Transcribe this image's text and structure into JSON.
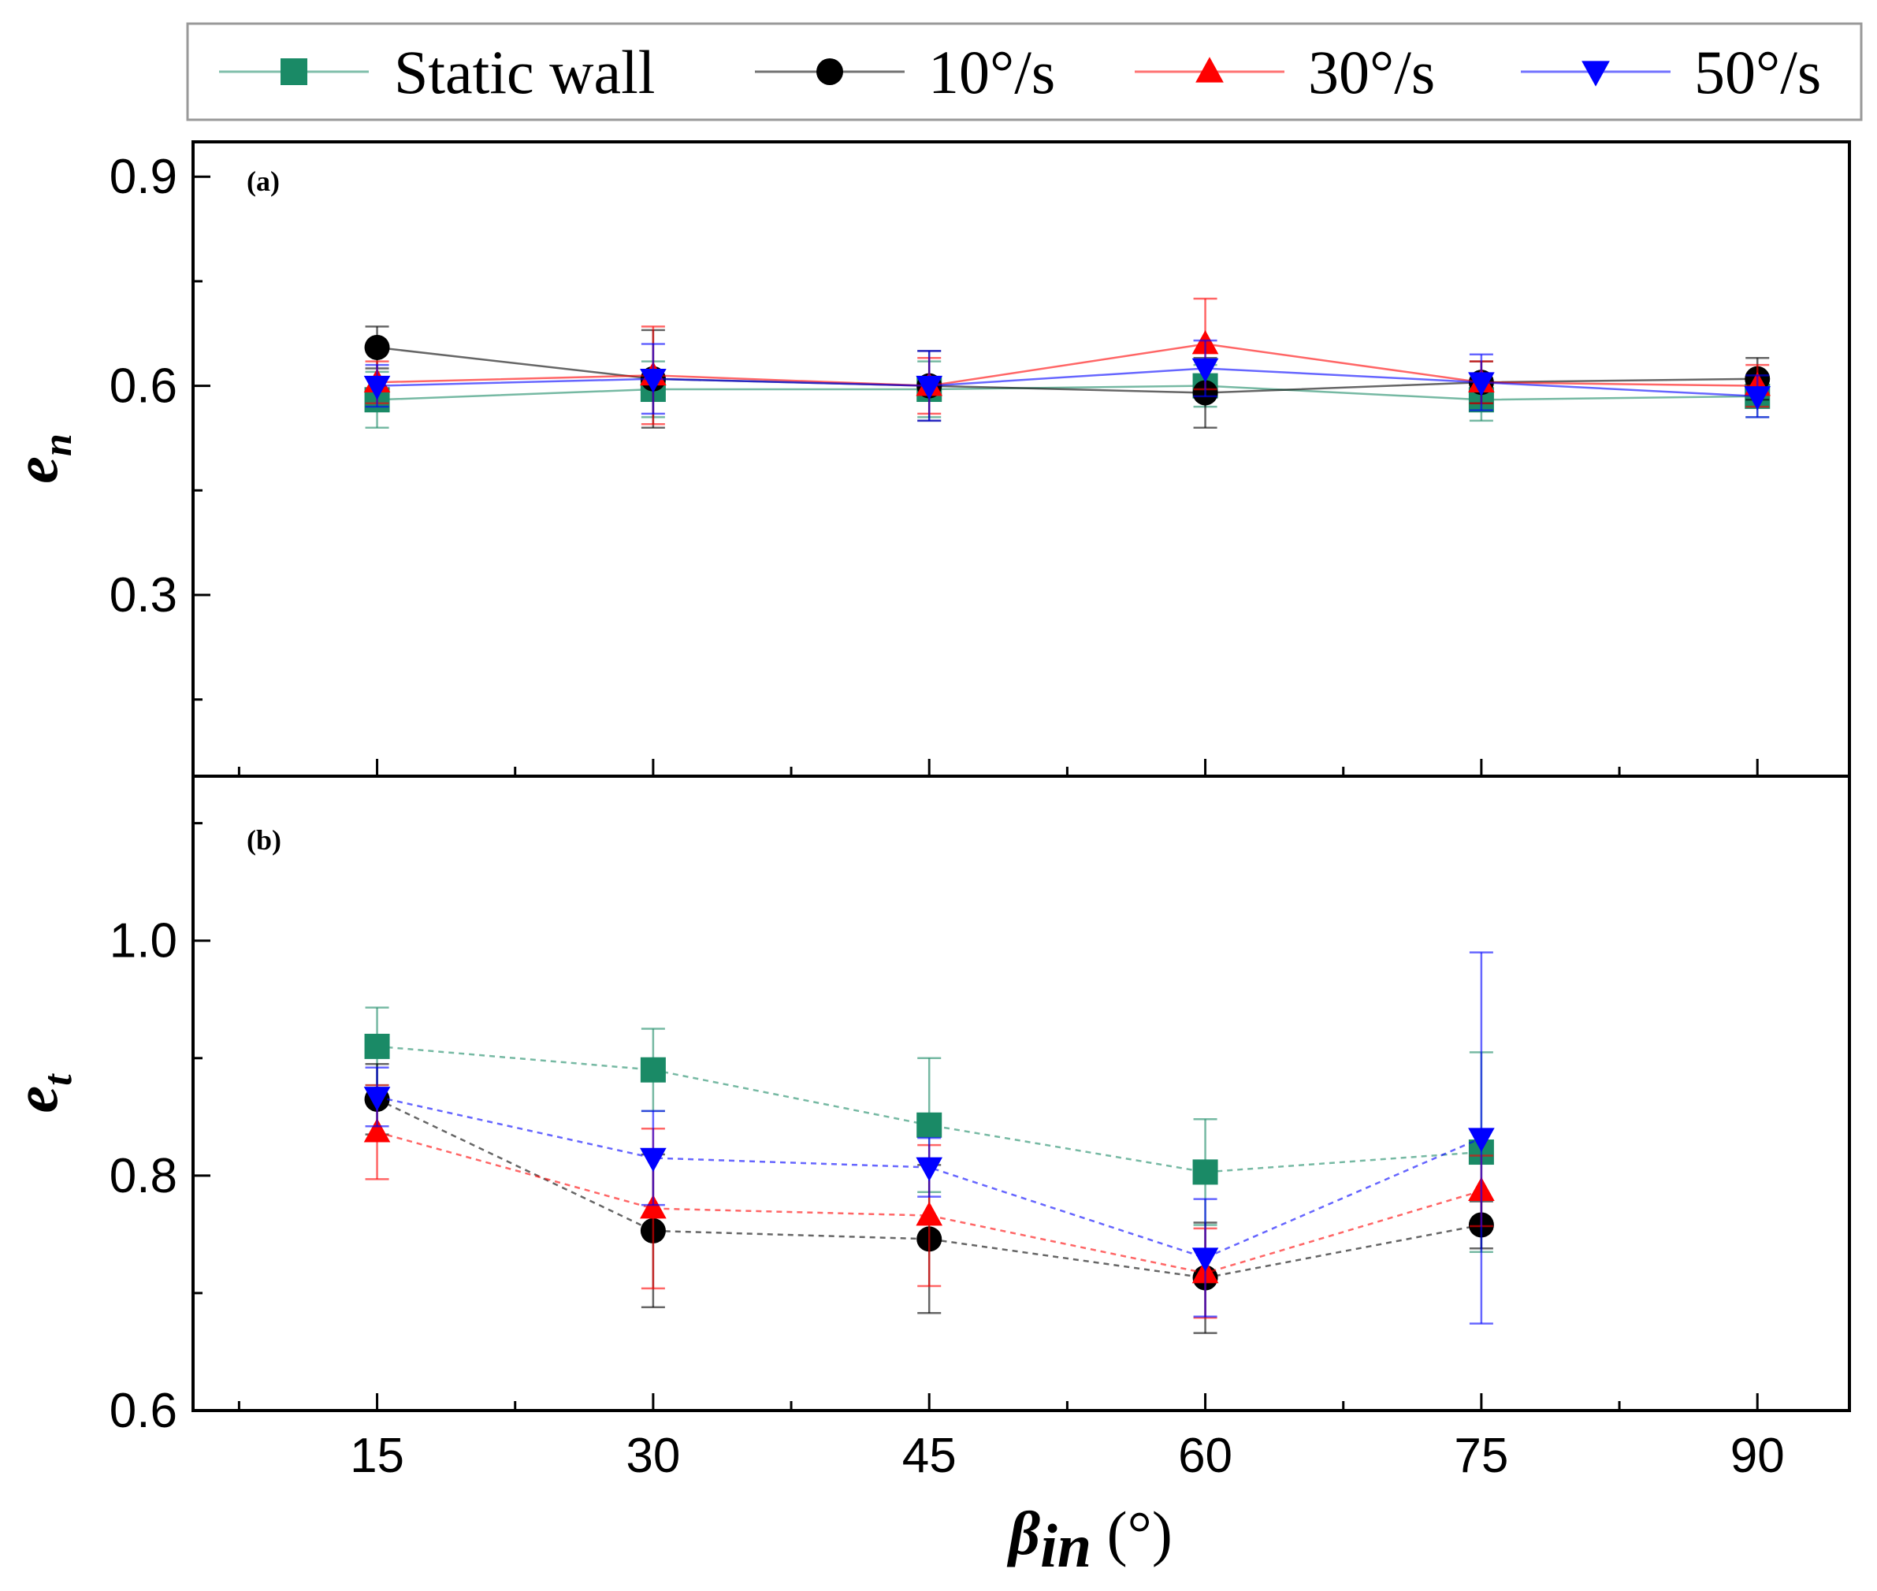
{
  "legend": [
    {
      "label": "Static wall",
      "color": "#1a8a66",
      "marker": "square"
    },
    {
      "label": "10°/s",
      "color": "#000000",
      "marker": "circle"
    },
    {
      "label": "30°/s",
      "color": "#ff0000",
      "marker": "triangle-up"
    },
    {
      "label": "50°/s",
      "color": "#0000ff",
      "marker": "triangle-down"
    }
  ],
  "chart_data": [
    {
      "type": "line",
      "panel_label": "(a)",
      "ylabel": "e",
      "ylabel_sub": "n",
      "x": [
        15,
        30,
        45,
        60,
        75,
        90
      ],
      "xlim": [
        5,
        95
      ],
      "ylim": [
        0.04,
        0.95
      ],
      "yticks": [
        0.3,
        0.6,
        0.9
      ],
      "ytick_labels": [
        "0.3",
        "0.6",
        "0.9"
      ],
      "grid": false,
      "line_style": "solid",
      "series": [
        {
          "name": "Static wall",
          "values": [
            0.58,
            0.595,
            0.595,
            0.6,
            0.58,
            0.585
          ],
          "err": [
            0.04,
            0.04,
            0.04,
            0.03,
            0.03,
            0.03
          ]
        },
        {
          "name": "10°/s",
          "values": [
            0.655,
            0.61,
            0.6,
            0.59,
            0.605,
            0.61
          ],
          "err": [
            0.03,
            0.07,
            0.05,
            0.05,
            0.03,
            0.03
          ]
        },
        {
          "name": "30°/s",
          "values": [
            0.605,
            0.615,
            0.6,
            0.66,
            0.605,
            0.6
          ],
          "err": [
            0.03,
            0.07,
            0.04,
            0.065,
            0.03,
            0.03
          ]
        },
        {
          "name": "50°/s",
          "values": [
            0.6,
            0.61,
            0.6,
            0.625,
            0.605,
            0.585
          ],
          "err": [
            0.03,
            0.05,
            0.05,
            0.04,
            0.04,
            0.03
          ]
        }
      ]
    },
    {
      "type": "line",
      "panel_label": "(b)",
      "ylabel": "e",
      "ylabel_sub": "t",
      "xlabel": "β",
      "xlabel_sub": "in",
      "xlabel_unit": " (°)",
      "x": [
        15,
        30,
        45,
        60,
        75
      ],
      "xlim": [
        5,
        95
      ],
      "ylim": [
        0.6,
        1.14
      ],
      "xticks": [
        15,
        30,
        45,
        60,
        75,
        90
      ],
      "xtick_labels": [
        "15",
        "30",
        "45",
        "60",
        "75",
        "90"
      ],
      "yticks": [
        0.6,
        0.8,
        1.0
      ],
      "ytick_labels": [
        "0.6",
        "0.8",
        "1.0"
      ],
      "grid": false,
      "line_style": "dotted",
      "series": [
        {
          "name": "Static wall",
          "values": [
            0.91,
            0.89,
            0.843,
            0.803,
            0.82
          ],
          "err": [
            0.033,
            0.035,
            0.057,
            0.045,
            0.085
          ]
        },
        {
          "name": "10°/s",
          "values": [
            0.865,
            0.753,
            0.746,
            0.713,
            0.758
          ],
          "err": [
            0.03,
            0.065,
            0.063,
            0.047,
            0.02
          ]
        },
        {
          "name": "30°/s",
          "values": [
            0.837,
            0.772,
            0.766,
            0.717,
            0.787
          ],
          "err": [
            0.04,
            0.068,
            0.06,
            0.038,
            0.03
          ]
        },
        {
          "name": "50°/s",
          "values": [
            0.867,
            0.815,
            0.807,
            0.73,
            0.832
          ],
          "err": [
            0.025,
            0.04,
            0.025,
            0.05,
            0.158
          ]
        }
      ]
    }
  ]
}
